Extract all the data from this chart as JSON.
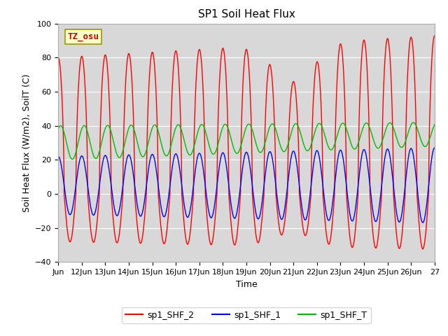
{
  "title": "SP1 Soil Heat Flux",
  "xlabel": "Time",
  "ylabel": "Soil Heat Flux (W/m2), SoilT (C)",
  "ylim": [
    -40,
    100
  ],
  "background_color": "#ffffff",
  "plot_bg_color": "#d8d8d8",
  "grid_color": "#ffffff",
  "annotation_text": "TZ_osu",
  "annotation_box_color": "#ffffcc",
  "annotation_text_color": "#cc0000",
  "xtick_labels": [
    "Jun",
    "12Jun",
    "13Jun",
    "14Jun",
    "15Jun",
    "16Jun",
    "17Jun",
    "18Jun",
    "19Jun",
    "20Jun",
    "21Jun",
    "22Jun",
    "23Jun",
    "24Jun",
    "25Jun",
    "26Jun",
    "27"
  ],
  "legend_entries": [
    "sp1_SHF_2",
    "sp1_SHF_1",
    "sp1_SHF_T"
  ],
  "legend_colors": [
    "#ff0000",
    "#0000ff",
    "#00bb00"
  ],
  "line_shf2_color": "#ff0000",
  "line_shf1_color": "#0000ff",
  "line_shft_color": "#00bb00"
}
